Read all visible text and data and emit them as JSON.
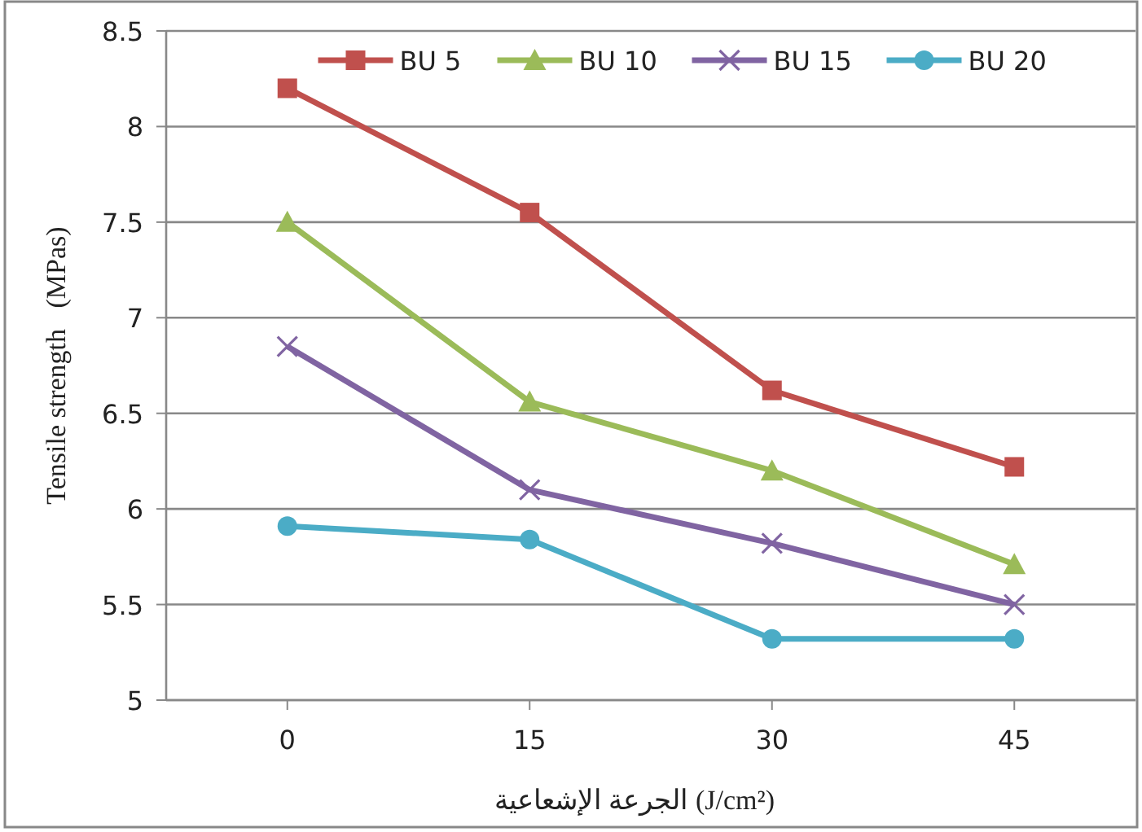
{
  "chart_data": {
    "type": "line",
    "ylabel": "Tensile strength   (MPas)",
    "xlabel": "الجرعة الإشعاعية (J/cm²)",
    "categories": [
      "0",
      "15",
      "30",
      "45"
    ],
    "ylim": [
      5,
      8.5
    ],
    "yticks": [
      5,
      5.5,
      6,
      6.5,
      7,
      7.5,
      8,
      8.5
    ],
    "grid": "y",
    "legend": "top",
    "line_style": "solid",
    "series": [
      {
        "name": "BU 5",
        "color": "#c0504d",
        "marker": "square",
        "values": [
          8.2,
          7.55,
          6.62,
          6.22
        ]
      },
      {
        "name": "BU 10",
        "color": "#9bbb59",
        "marker": "triangle",
        "values": [
          7.5,
          6.56,
          6.2,
          5.71
        ]
      },
      {
        "name": "BU 15",
        "color": "#8064a2",
        "marker": "cross",
        "values": [
          6.85,
          6.1,
          5.82,
          5.5
        ]
      },
      {
        "name": "BU 20",
        "color": "#4bacc6",
        "marker": "circle",
        "values": [
          5.91,
          5.84,
          5.32,
          5.32
        ]
      }
    ]
  }
}
